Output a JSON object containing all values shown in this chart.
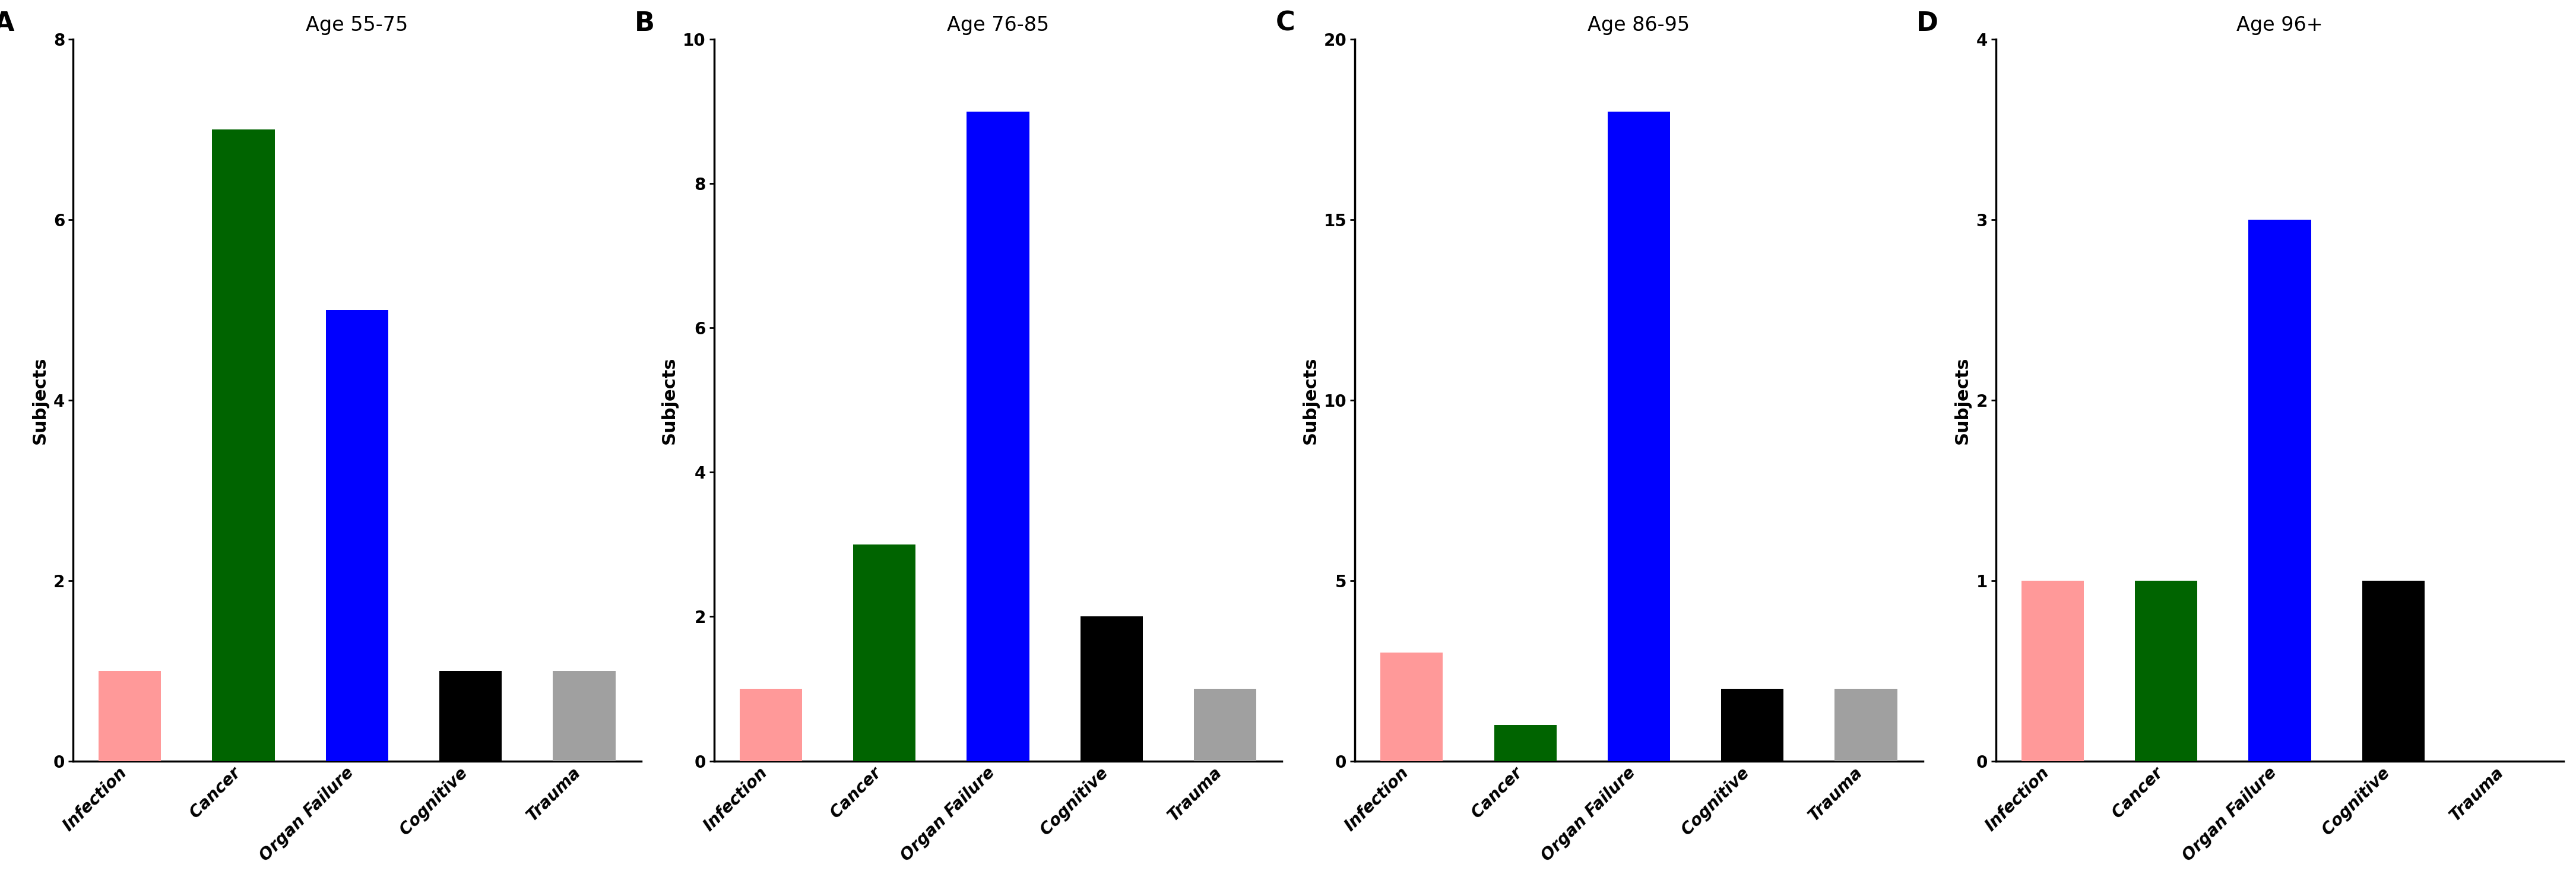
{
  "panels": [
    {
      "label": "A",
      "title": "Age 55-75",
      "categories": [
        "Infection",
        "Cancer",
        "Organ Failure",
        "Cognitive",
        "Trauma"
      ],
      "values": [
        1,
        7,
        5,
        1,
        1
      ],
      "colors": [
        "#FF9999",
        "#006400",
        "#0000FF",
        "#000000",
        "#A0A0A0"
      ],
      "ylim": [
        0,
        8
      ],
      "yticks": [
        0,
        2,
        4,
        6,
        8
      ]
    },
    {
      "label": "B",
      "title": "Age 76-85",
      "categories": [
        "Infection",
        "Cancer",
        "Organ Failure",
        "Cognitive",
        "Trauma"
      ],
      "values": [
        1,
        3,
        9,
        2,
        1
      ],
      "colors": [
        "#FF9999",
        "#006400",
        "#0000FF",
        "#000000",
        "#A0A0A0"
      ],
      "ylim": [
        0,
        10
      ],
      "yticks": [
        0,
        2,
        4,
        6,
        8,
        10
      ]
    },
    {
      "label": "C",
      "title": "Age 86-95",
      "categories": [
        "Infection",
        "Cancer",
        "Organ Failure",
        "Cognitive",
        "Trauma"
      ],
      "values": [
        3,
        1,
        18,
        2,
        2
      ],
      "colors": [
        "#FF9999",
        "#006400",
        "#0000FF",
        "#000000",
        "#A0A0A0"
      ],
      "ylim": [
        0,
        20
      ],
      "yticks": [
        0,
        5,
        10,
        15,
        20
      ]
    },
    {
      "label": "D",
      "title": "Age 96+",
      "categories": [
        "Infection",
        "Cancer",
        "Organ Failure",
        "Cognitive",
        "Trauma"
      ],
      "values": [
        1,
        1,
        3,
        1,
        0
      ],
      "colors": [
        "#FF9999",
        "#006400",
        "#0000FF",
        "#000000",
        "#A0A0A0"
      ],
      "ylim": [
        0,
        4
      ],
      "yticks": [
        0,
        1,
        2,
        3,
        4
      ]
    }
  ],
  "ylabel": "Subjects",
  "background_color": "#FFFFFF",
  "bar_width": 0.55,
  "panel_label_fontsize": 32,
  "title_fontsize": 24,
  "tick_fontsize": 20,
  "ylabel_fontsize": 22,
  "xtick_fontsize": 20
}
